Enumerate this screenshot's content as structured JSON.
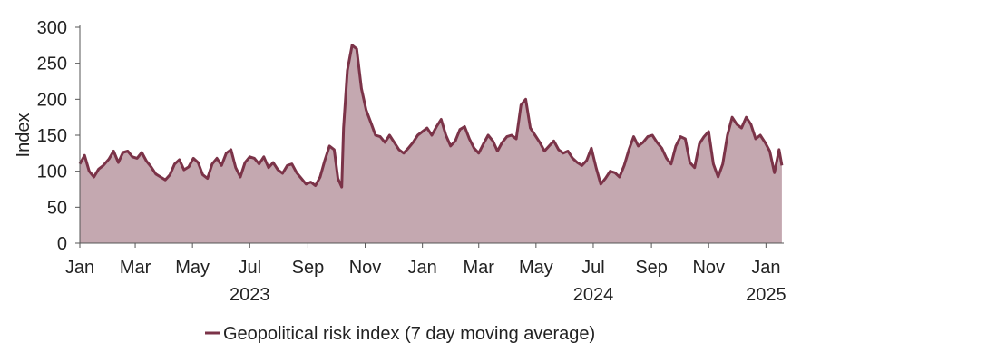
{
  "chart_data": {
    "type": "area",
    "ylabel": "Index",
    "ylim": [
      0,
      300
    ],
    "yticks": [
      0,
      50,
      100,
      150,
      200,
      250,
      300
    ],
    "xlim": [
      "2023-01-01",
      "2025-01-20"
    ],
    "month_ticks": [
      {
        "label": "Jan",
        "date": "2023-01-01"
      },
      {
        "label": "Mar",
        "date": "2023-03-01"
      },
      {
        "label": "May",
        "date": "2023-05-01"
      },
      {
        "label": "Jul",
        "date": "2023-07-01"
      },
      {
        "label": "Sep",
        "date": "2023-09-01"
      },
      {
        "label": "Nov",
        "date": "2023-11-01"
      },
      {
        "label": "Jan",
        "date": "2024-01-01"
      },
      {
        "label": "Mar",
        "date": "2024-03-01"
      },
      {
        "label": "May",
        "date": "2024-05-01"
      },
      {
        "label": "Jul",
        "date": "2024-07-01"
      },
      {
        "label": "Sep",
        "date": "2024-09-01"
      },
      {
        "label": "Nov",
        "date": "2024-11-01"
      },
      {
        "label": "Jan",
        "date": "2025-01-01"
      }
    ],
    "year_labels": [
      {
        "label": "2023",
        "date": "2023-07-01"
      },
      {
        "label": "2024",
        "date": "2024-07-01"
      },
      {
        "label": "2025",
        "date": "2025-01-01"
      }
    ],
    "grid": false,
    "legend_position": "bottom",
    "colors": {
      "line": "#7b3348",
      "fill": "#c4a8b0"
    },
    "series": [
      {
        "name": "Geopolitical risk index (7 day moving average)",
        "points": [
          [
            "2023-01-01",
            110
          ],
          [
            "2023-01-06",
            122
          ],
          [
            "2023-01-11",
            100
          ],
          [
            "2023-01-16",
            92
          ],
          [
            "2023-01-21",
            103
          ],
          [
            "2023-01-26",
            108
          ],
          [
            "2023-02-01",
            117
          ],
          [
            "2023-02-06",
            128
          ],
          [
            "2023-02-11",
            112
          ],
          [
            "2023-02-16",
            126
          ],
          [
            "2023-02-21",
            128
          ],
          [
            "2023-02-26",
            120
          ],
          [
            "2023-03-03",
            118
          ],
          [
            "2023-03-08",
            126
          ],
          [
            "2023-03-13",
            114
          ],
          [
            "2023-03-18",
            106
          ],
          [
            "2023-03-23",
            96
          ],
          [
            "2023-03-28",
            92
          ],
          [
            "2023-04-02",
            88
          ],
          [
            "2023-04-07",
            95
          ],
          [
            "2023-04-12",
            110
          ],
          [
            "2023-04-17",
            116
          ],
          [
            "2023-04-22",
            102
          ],
          [
            "2023-04-27",
            106
          ],
          [
            "2023-05-02",
            118
          ],
          [
            "2023-05-07",
            112
          ],
          [
            "2023-05-12",
            95
          ],
          [
            "2023-05-17",
            90
          ],
          [
            "2023-05-22",
            110
          ],
          [
            "2023-05-27",
            118
          ],
          [
            "2023-06-01",
            108
          ],
          [
            "2023-06-06",
            125
          ],
          [
            "2023-06-11",
            130
          ],
          [
            "2023-06-16",
            105
          ],
          [
            "2023-06-21",
            92
          ],
          [
            "2023-06-26",
            112
          ],
          [
            "2023-07-01",
            120
          ],
          [
            "2023-07-06",
            118
          ],
          [
            "2023-07-11",
            110
          ],
          [
            "2023-07-16",
            120
          ],
          [
            "2023-07-21",
            105
          ],
          [
            "2023-07-26",
            112
          ],
          [
            "2023-07-31",
            102
          ],
          [
            "2023-08-05",
            97
          ],
          [
            "2023-08-10",
            108
          ],
          [
            "2023-08-15",
            110
          ],
          [
            "2023-08-20",
            98
          ],
          [
            "2023-08-25",
            90
          ],
          [
            "2023-08-30",
            82
          ],
          [
            "2023-09-04",
            85
          ],
          [
            "2023-09-09",
            80
          ],
          [
            "2023-09-14",
            92
          ],
          [
            "2023-09-19",
            115
          ],
          [
            "2023-09-24",
            135
          ],
          [
            "2023-09-29",
            130
          ],
          [
            "2023-10-03",
            90
          ],
          [
            "2023-10-07",
            78
          ],
          [
            "2023-10-09",
            160
          ],
          [
            "2023-10-13",
            240
          ],
          [
            "2023-10-18",
            275
          ],
          [
            "2023-10-23",
            270
          ],
          [
            "2023-10-28",
            215
          ],
          [
            "2023-11-02",
            185
          ],
          [
            "2023-11-07",
            168
          ],
          [
            "2023-11-12",
            150
          ],
          [
            "2023-11-17",
            148
          ],
          [
            "2023-11-22",
            140
          ],
          [
            "2023-11-27",
            150
          ],
          [
            "2023-12-02",
            140
          ],
          [
            "2023-12-07",
            130
          ],
          [
            "2023-12-12",
            125
          ],
          [
            "2023-12-17",
            132
          ],
          [
            "2023-12-22",
            140
          ],
          [
            "2023-12-27",
            150
          ],
          [
            "2024-01-01",
            155
          ],
          [
            "2024-01-06",
            160
          ],
          [
            "2024-01-11",
            150
          ],
          [
            "2024-01-16",
            162
          ],
          [
            "2024-01-21",
            172
          ],
          [
            "2024-01-26",
            150
          ],
          [
            "2024-01-31",
            135
          ],
          [
            "2024-02-05",
            142
          ],
          [
            "2024-02-10",
            158
          ],
          [
            "2024-02-15",
            162
          ],
          [
            "2024-02-20",
            145
          ],
          [
            "2024-02-25",
            132
          ],
          [
            "2024-03-01",
            125
          ],
          [
            "2024-03-06",
            138
          ],
          [
            "2024-03-11",
            150
          ],
          [
            "2024-03-16",
            142
          ],
          [
            "2024-03-21",
            128
          ],
          [
            "2024-03-26",
            140
          ],
          [
            "2024-03-31",
            148
          ],
          [
            "2024-04-05",
            150
          ],
          [
            "2024-04-10",
            145
          ],
          [
            "2024-04-15",
            192
          ],
          [
            "2024-04-20",
            200
          ],
          [
            "2024-04-25",
            160
          ],
          [
            "2024-04-30",
            150
          ],
          [
            "2024-05-05",
            140
          ],
          [
            "2024-05-10",
            128
          ],
          [
            "2024-05-15",
            135
          ],
          [
            "2024-05-20",
            142
          ],
          [
            "2024-05-25",
            130
          ],
          [
            "2024-05-30",
            125
          ],
          [
            "2024-06-04",
            128
          ],
          [
            "2024-06-09",
            118
          ],
          [
            "2024-06-14",
            112
          ],
          [
            "2024-06-19",
            108
          ],
          [
            "2024-06-24",
            115
          ],
          [
            "2024-06-29",
            132
          ],
          [
            "2024-07-04",
            105
          ],
          [
            "2024-07-09",
            82
          ],
          [
            "2024-07-14",
            90
          ],
          [
            "2024-07-19",
            100
          ],
          [
            "2024-07-24",
            98
          ],
          [
            "2024-07-29",
            92
          ],
          [
            "2024-08-03",
            108
          ],
          [
            "2024-08-08",
            130
          ],
          [
            "2024-08-13",
            148
          ],
          [
            "2024-08-18",
            135
          ],
          [
            "2024-08-23",
            140
          ],
          [
            "2024-08-28",
            148
          ],
          [
            "2024-09-02",
            150
          ],
          [
            "2024-09-07",
            140
          ],
          [
            "2024-09-12",
            132
          ],
          [
            "2024-09-17",
            118
          ],
          [
            "2024-09-22",
            110
          ],
          [
            "2024-09-27",
            135
          ],
          [
            "2024-10-02",
            148
          ],
          [
            "2024-10-07",
            145
          ],
          [
            "2024-10-12",
            112
          ],
          [
            "2024-10-17",
            105
          ],
          [
            "2024-10-22",
            138
          ],
          [
            "2024-10-27",
            148
          ],
          [
            "2024-11-01",
            155
          ],
          [
            "2024-11-06",
            110
          ],
          [
            "2024-11-11",
            92
          ],
          [
            "2024-11-16",
            110
          ],
          [
            "2024-11-21",
            150
          ],
          [
            "2024-11-26",
            175
          ],
          [
            "2024-12-01",
            165
          ],
          [
            "2024-12-06",
            160
          ],
          [
            "2024-12-11",
            175
          ],
          [
            "2024-12-16",
            165
          ],
          [
            "2024-12-21",
            145
          ],
          [
            "2024-12-26",
            150
          ],
          [
            "2024-12-31",
            140
          ],
          [
            "2025-01-05",
            128
          ],
          [
            "2025-01-10",
            98
          ],
          [
            "2025-01-15",
            130
          ],
          [
            "2025-01-18",
            108
          ]
        ]
      }
    ]
  }
}
